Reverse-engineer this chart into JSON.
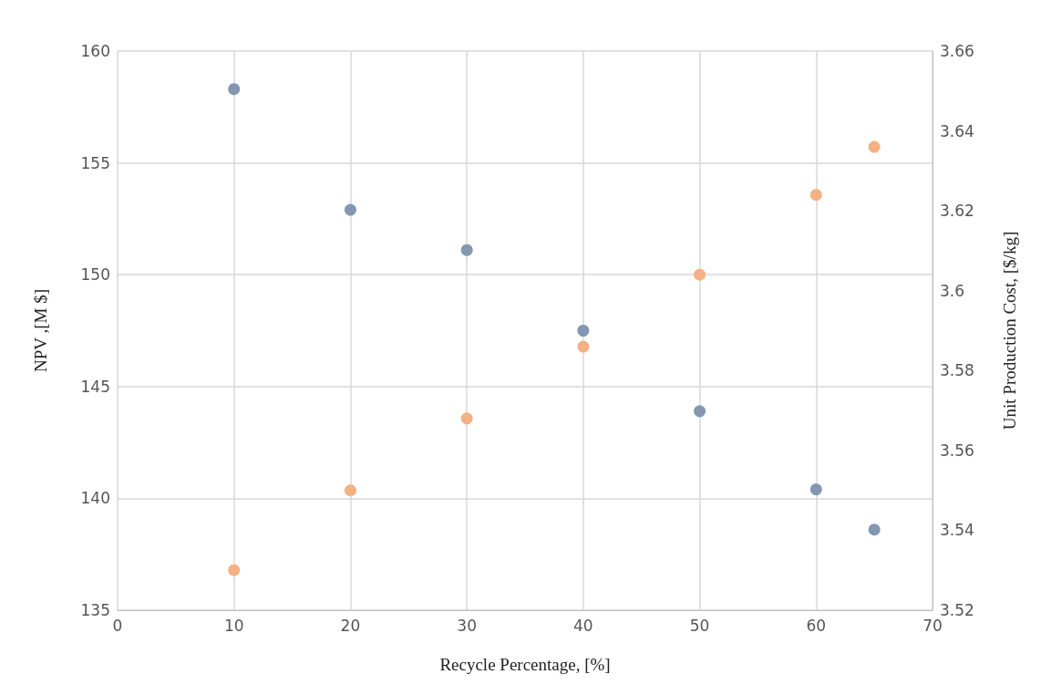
{
  "chart_data": {
    "type": "scatter",
    "xlabel": "Recycle Percentage, [%]",
    "ylabel": "NPV ,[M $]",
    "y2label": "Unit Production Cost, [$/kg]",
    "x": [
      10,
      20,
      30,
      40,
      50,
      60,
      65
    ],
    "series": [
      {
        "color": "#8497b0",
        "values": [
          158.3,
          152.9,
          151.1,
          147.5,
          143.9,
          140.4,
          138.6
        ]
      },
      {
        "color": "#f4b183",
        "axis": "y2",
        "values": [
          3.53,
          3.55,
          3.568,
          3.586,
          3.604,
          3.624,
          3.636
        ]
      }
    ],
    "xlim": [
      0,
      70
    ],
    "xticks": [
      0,
      10,
      20,
      30,
      40,
      50,
      60,
      70
    ],
    "ylim": [
      135,
      160
    ],
    "yticks": [
      135,
      140,
      145,
      150,
      155,
      160
    ],
    "y2lim": [
      3.52,
      3.66
    ],
    "y2ticks": [
      3.52,
      3.54,
      3.56,
      3.58,
      3.6,
      3.62,
      3.64,
      3.66
    ],
    "grid": true,
    "marker": "circle"
  }
}
